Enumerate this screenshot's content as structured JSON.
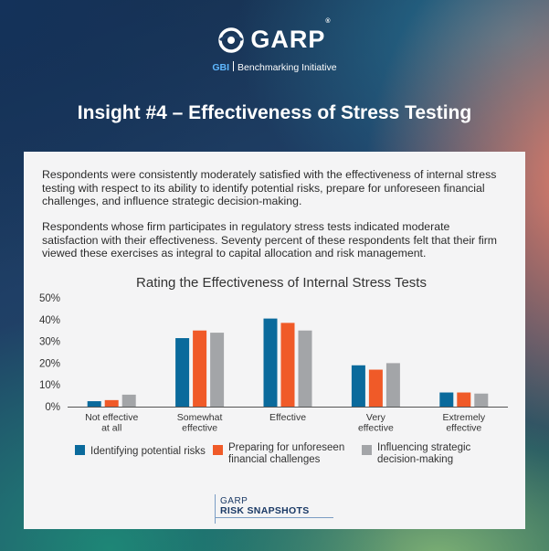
{
  "logo": {
    "word": "GARP",
    "reg": "®",
    "gbi": "GBI",
    "sub": "Benchmarking Initiative"
  },
  "title": "Insight #4 – Effectiveness of Stress Testing",
  "paragraphs": [
    "Respondents were consistently moderately satisfied with the effectiveness of internal stress testing with respect to its ability to identify potential risks, prepare for unforeseen financial challenges, and influence strategic decision-making.",
    "Respondents whose firm participates in regulatory stress tests indicated moderate satisfaction with their effectiveness. Seventy percent of these respondents felt that their firm viewed these exercises as integral to capital allocation and risk management."
  ],
  "brand": {
    "garp": "GARP",
    "snapshots": "RISK SNAPSHOTS"
  },
  "colors": {
    "blue": "#0a6a9c",
    "orange": "#f05a28",
    "gray": "#a3a5a8"
  },
  "chart_data": {
    "type": "bar",
    "title": "Rating the Effectiveness of Internal Stress Tests",
    "categories": [
      [
        "Not effective",
        "at all"
      ],
      [
        "Somewhat",
        "effective"
      ],
      [
        "Effective"
      ],
      [
        "Very",
        "effective"
      ],
      [
        "Extremely",
        "effective"
      ]
    ],
    "series": [
      {
        "name": [
          "Identifying potential risks"
        ],
        "color": "#0a6a9c",
        "values": [
          2.5,
          31.5,
          40.5,
          19,
          6.5
        ]
      },
      {
        "name": [
          "Preparing for unforeseen",
          "financial challenges"
        ],
        "color": "#f05a28",
        "values": [
          3,
          35,
          38.5,
          17,
          6.5
        ]
      },
      {
        "name": [
          "Influencing strategic",
          "decision-making"
        ],
        "color": "#a3a5a8",
        "values": [
          5.5,
          34,
          35,
          20,
          6
        ]
      }
    ],
    "ylim": [
      0,
      50
    ],
    "yticks": [
      0,
      10,
      20,
      30,
      40,
      50
    ],
    "ytick_labels": [
      "0%",
      "10%",
      "20%",
      "30%",
      "40%",
      "50%"
    ],
    "xlabel": "",
    "ylabel": "",
    "grid": false,
    "legend": "bottom"
  }
}
